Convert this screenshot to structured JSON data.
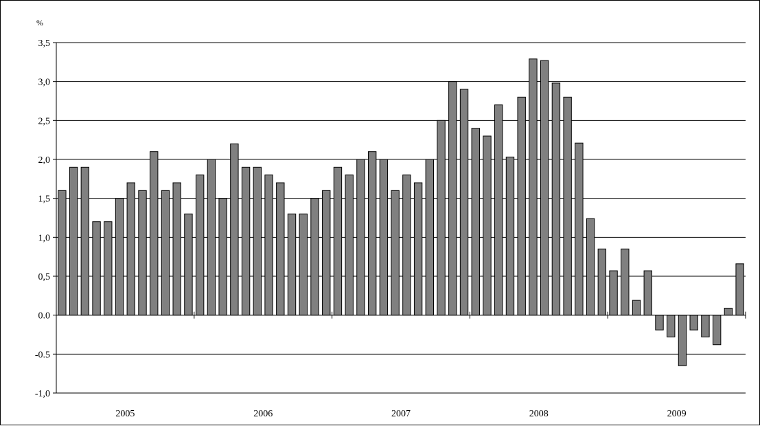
{
  "chart_data": {
    "type": "bar",
    "ylabel": "%",
    "ylim": [
      -1.0,
      3.5
    ],
    "y_ticks": [
      "-1,0",
      "-0.5",
      "0.0",
      "0,5",
      "1,0",
      "1,5",
      "2,0",
      "2,5",
      "3,0",
      "3,5"
    ],
    "y_tick_values": [
      -1.0,
      -0.5,
      0.0,
      0.5,
      1.0,
      1.5,
      2.0,
      2.5,
      3.0,
      3.5
    ],
    "grid": "horizontal",
    "year_labels": [
      "2005",
      "2006",
      "2007",
      "2008",
      "2009"
    ],
    "bar_color": "#808080",
    "values": [
      1.6,
      1.9,
      1.9,
      1.2,
      1.2,
      1.5,
      1.7,
      1.6,
      2.1,
      1.6,
      1.7,
      1.3,
      1.8,
      2.0,
      1.5,
      2.2,
      1.9,
      1.9,
      1.8,
      1.7,
      1.3,
      1.3,
      1.5,
      1.6,
      1.9,
      1.8,
      2.0,
      2.1,
      2.0,
      1.6,
      1.8,
      1.7,
      2.0,
      2.5,
      3.0,
      2.9,
      2.4,
      2.3,
      2.7,
      2.03,
      2.8,
      3.29,
      3.27,
      2.98,
      2.8,
      2.21,
      1.24,
      0.85,
      0.57,
      0.85,
      0.19,
      0.57,
      -0.19,
      -0.28,
      -0.65,
      -0.19,
      -0.28,
      -0.38,
      0.09,
      0.66
    ]
  }
}
